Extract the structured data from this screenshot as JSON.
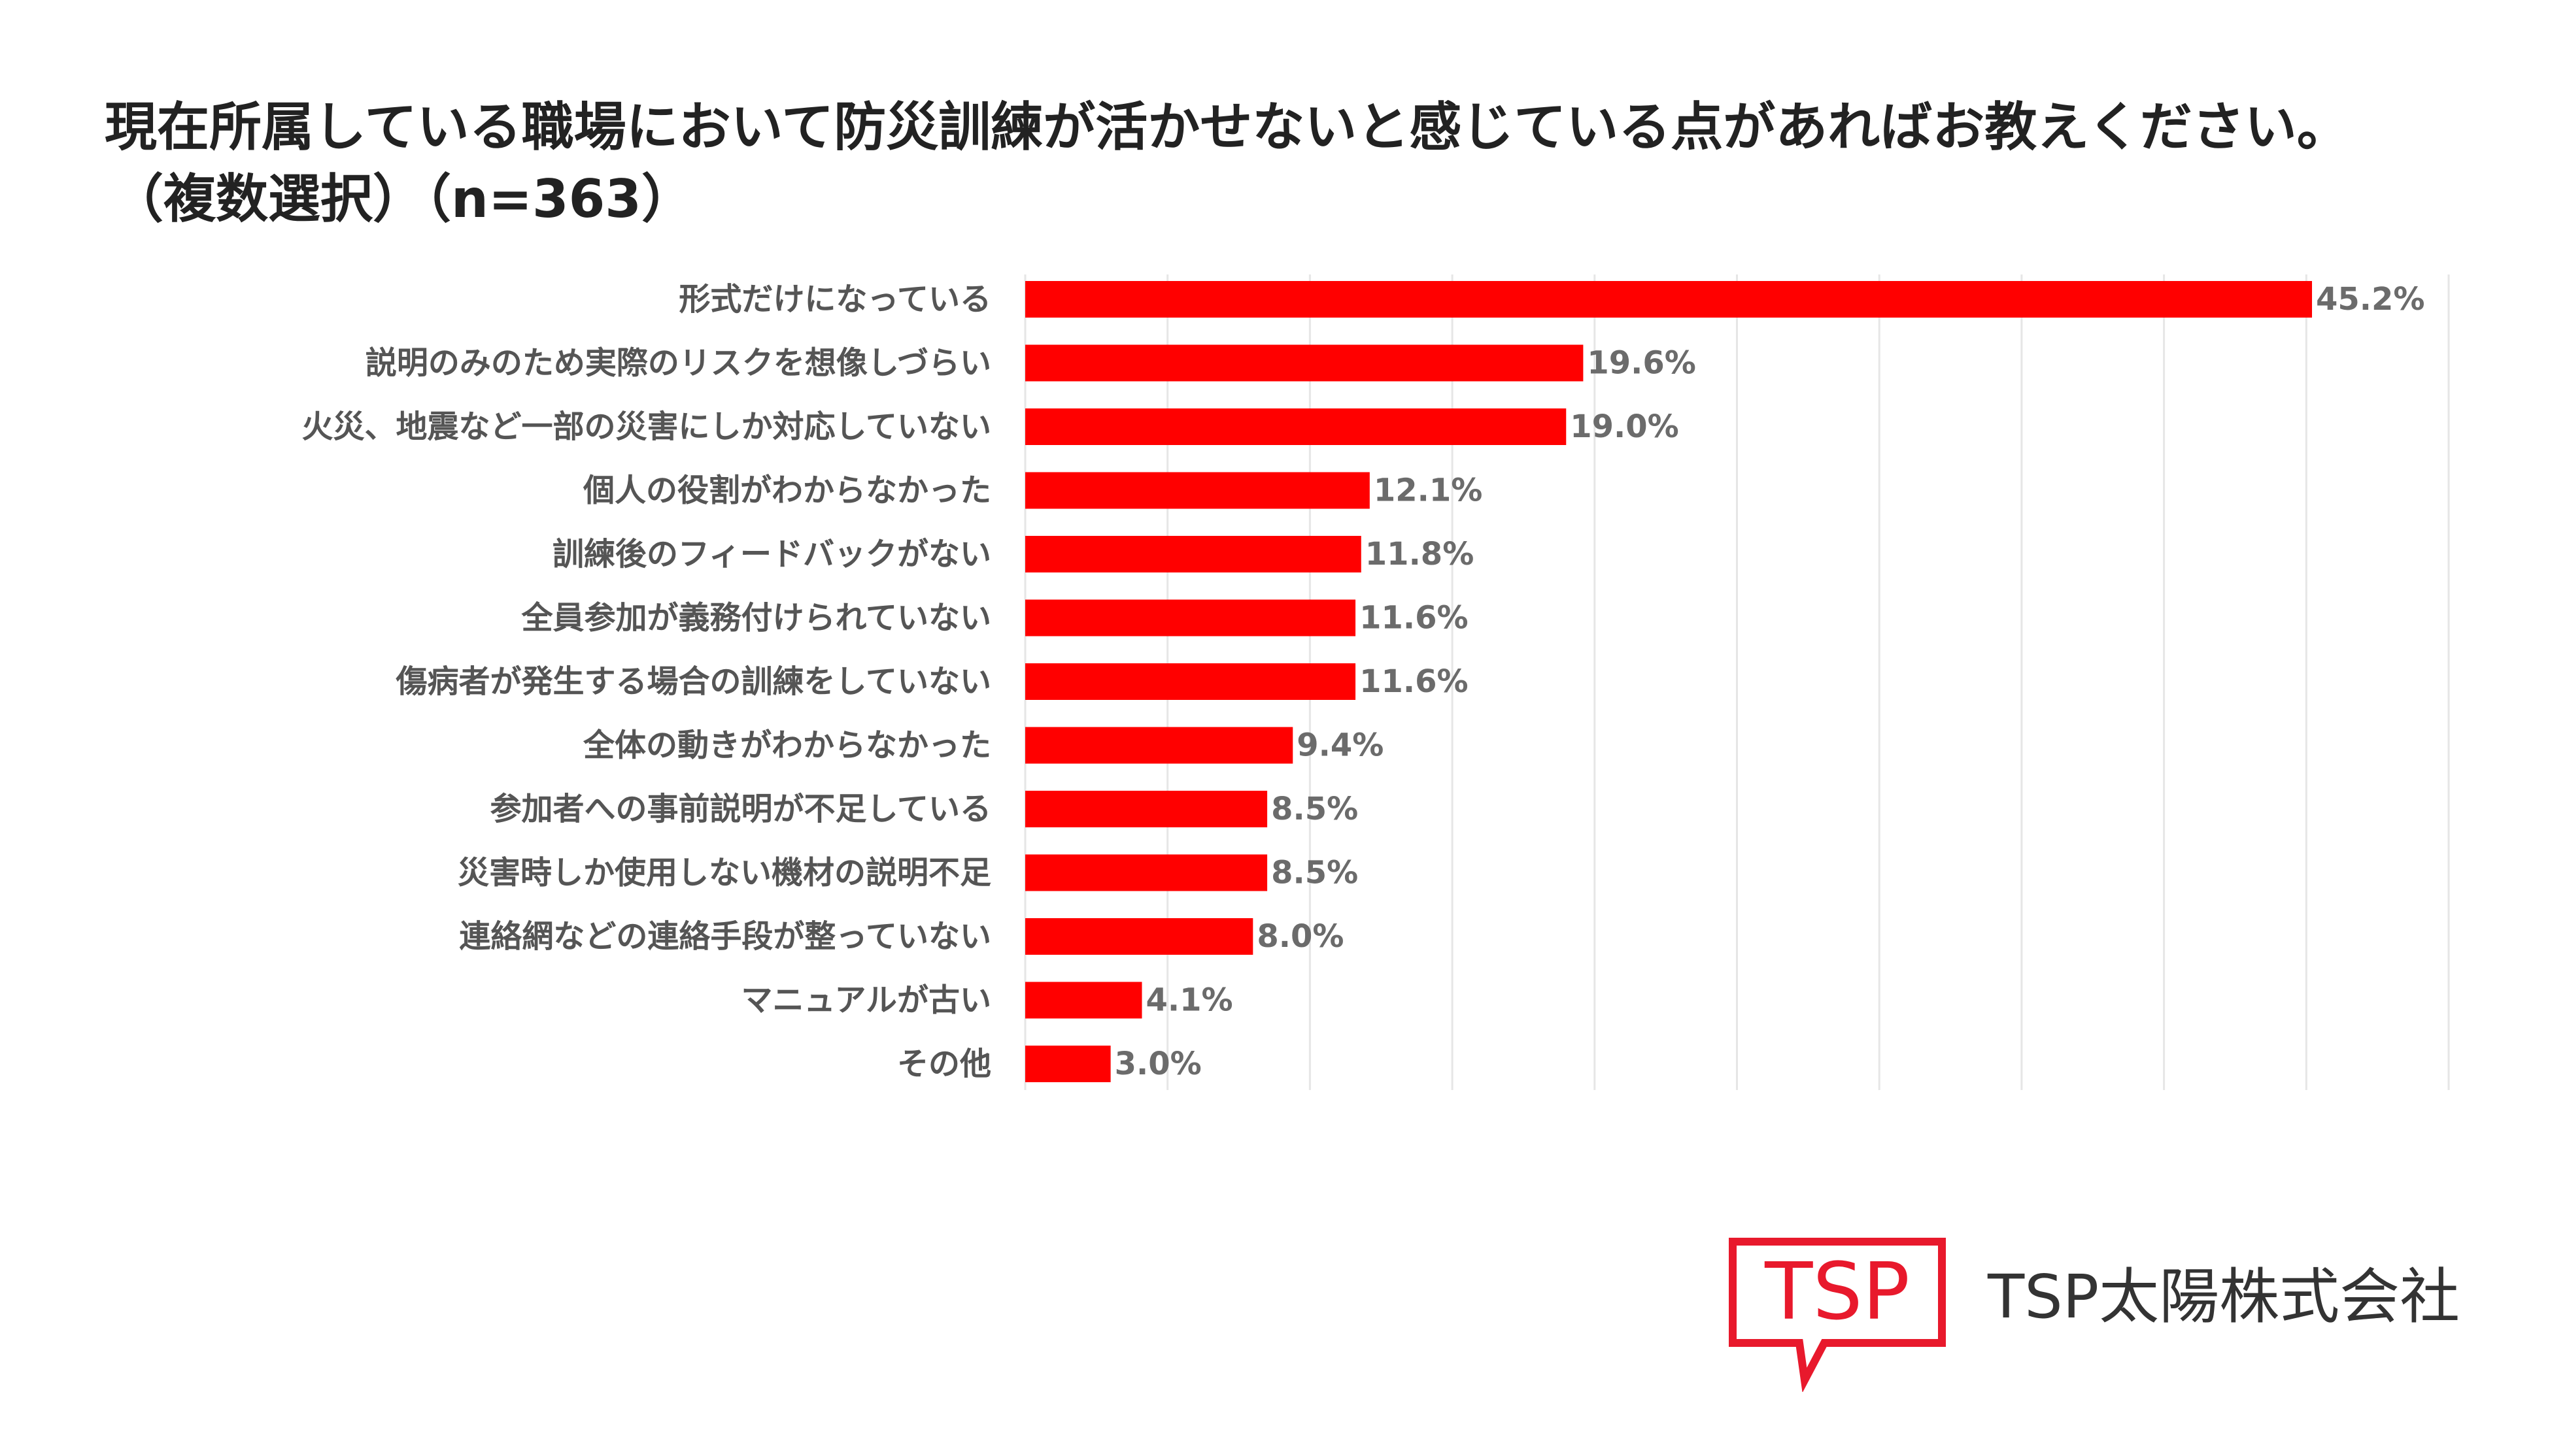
{
  "chart_data": {
    "type": "bar",
    "orientation": "horizontal",
    "title": "現在所属している職場において防災訓練が活かせないと感じている点があればお教えください。",
    "subtitle": "（複数選択）（n=363）",
    "categories": [
      "形式だけになっている",
      "説明のみのため実際のリスクを想像しづらい",
      "火災、地震など一部の災害にしか対応していない",
      "個人の役割がわからなかった",
      "訓練後のフィードバックがない",
      "全員参加が義務付けられていない",
      "傷病者が発生する場合の訓練をしていない",
      "全体の動きがわからなかった",
      "参加者への事前説明が不足している",
      "災害時しか使用しない機材の説明不足",
      "連絡網などの連絡手段が整っていない",
      "マニュアルが古い",
      "その他"
    ],
    "values": [
      45.2,
      19.6,
      19.0,
      12.1,
      11.8,
      11.6,
      11.6,
      9.4,
      8.5,
      8.5,
      8.0,
      4.1,
      3.0
    ],
    "value_labels": [
      "45.2%",
      "19.6%",
      "19.0%",
      "12.1%",
      "11.8%",
      "11.6%",
      "11.6%",
      "9.4%",
      "8.5%",
      "8.5%",
      "8.0%",
      "4.1%",
      "3.0%"
    ],
    "xlim": [
      0,
      50
    ],
    "grid_step": 5,
    "xlabel": "",
    "ylabel": "",
    "legend": "none",
    "bar_color": "#ff0000",
    "grid_color": "#e6e6e6"
  },
  "header": {
    "title_line1": "現在所属している職場において防災訓練が活かせないと感じている点があればお教えください。",
    "title_line2": "（複数選択）（n=363）"
  },
  "logo": {
    "text": "TSP",
    "color": "#e8192c"
  },
  "company": {
    "name": "TSP太陽株式会社"
  }
}
